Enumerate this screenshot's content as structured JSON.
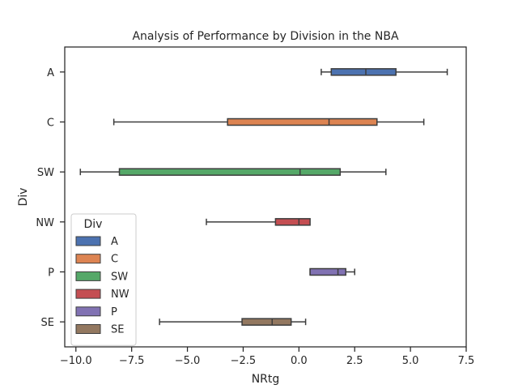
{
  "chart_data": {
    "type": "boxplot",
    "orientation": "horizontal",
    "title": "Analysis of Performance by Division in the NBA",
    "xlabel": "NRtg",
    "ylabel": "Div",
    "xlim": [
      -10.5,
      7.5
    ],
    "xticks": [
      -10.0,
      -7.5,
      -5.0,
      -2.5,
      0.0,
      2.5,
      5.0,
      7.5
    ],
    "xtick_labels": [
      "−10.0",
      "−7.5",
      "−5.0",
      "−2.5",
      "0.0",
      "2.5",
      "5.0",
      "7.5"
    ],
    "grid": false,
    "legend": {
      "title": "Div",
      "placement": "lower-left"
    },
    "categories": [
      "A",
      "C",
      "SW",
      "NW",
      "P",
      "SE"
    ],
    "series": [
      {
        "name": "A",
        "color": "#4c72b0",
        "whislo": 1.0,
        "q1": 1.45,
        "median": 3.0,
        "q3": 4.35,
        "whishi": 6.65
      },
      {
        "name": "C",
        "color": "#dd8452",
        "whislo": -8.3,
        "q1": -3.2,
        "median": 1.35,
        "q3": 3.5,
        "whishi": 5.6
      },
      {
        "name": "SW",
        "color": "#55a868",
        "whislo": -9.8,
        "q1": -8.05,
        "median": 0.05,
        "q3": 1.85,
        "whishi": 3.9
      },
      {
        "name": "NW",
        "color": "#c44e52",
        "whislo": -4.15,
        "q1": -1.05,
        "median": 0.0,
        "q3": 0.5
      },
      {
        "name": "P",
        "color": "#8172b3",
        "whislo": 0.5,
        "q1": 0.5,
        "median": 1.75,
        "q3": 2.1,
        "whishi": 2.5
      },
      {
        "name": "SE",
        "color": "#937860",
        "whislo": -6.25,
        "q1": -2.55,
        "median": -1.2,
        "q3": -0.35,
        "whishi": 0.3
      }
    ]
  }
}
